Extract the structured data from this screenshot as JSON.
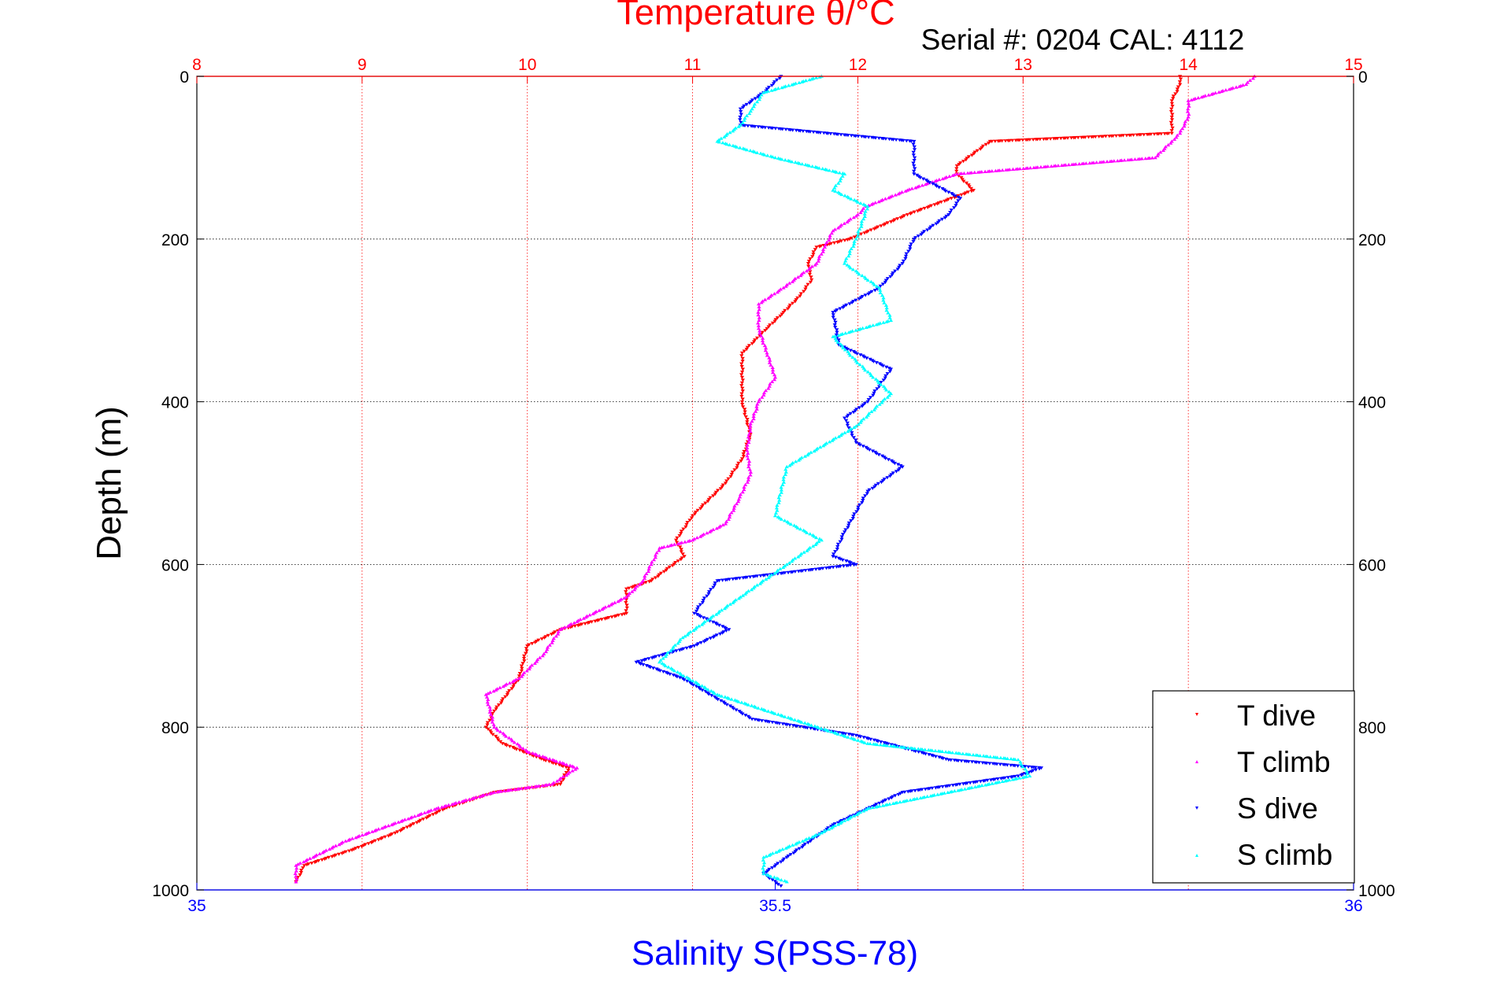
{
  "chart_data": {
    "type": "scatter",
    "title": "Temperature θ/°C",
    "subtitle": "Serial #: 0204  CAL: 4112",
    "ylabel": "Depth (m)",
    "xlabel_bottom": "Salinity S(PSS-78)",
    "y_axis": {
      "range": [
        0,
        1000
      ],
      "reversed": true,
      "ticks": [
        0,
        200,
        400,
        600,
        800,
        1000
      ],
      "tick_labels": [
        "0",
        "200",
        "400",
        "600",
        "800",
        "1000"
      ]
    },
    "x_top": {
      "label": "Temperature θ/°C",
      "range": [
        8,
        15
      ],
      "ticks": [
        8,
        9,
        10,
        11,
        12,
        13,
        14,
        15
      ],
      "tick_labels": [
        "8",
        "9",
        "10",
        "11",
        "12",
        "13",
        "14",
        "15"
      ],
      "grid": true
    },
    "x_bottom": {
      "label": "Salinity S(PSS-78)",
      "range": [
        35,
        36
      ],
      "ticks": [
        35,
        35.5,
        36
      ],
      "tick_labels": [
        "35",
        "35.5",
        "36"
      ]
    },
    "legend_position": "bottom-right",
    "colors": {
      "top_axis": "#ff0000",
      "bottom_axis": "#0000ff",
      "y_grid": "#000000"
    },
    "series": [
      {
        "name": "T dive",
        "axis": "top",
        "marker": "triangle-down",
        "color": "#ff0000",
        "x": [
          13.95,
          13.95,
          13.9,
          13.9,
          13.9,
          12.8,
          12.6,
          12.6,
          12.7,
          12.3,
          11.95,
          11.75,
          11.7,
          11.72,
          11.65,
          11.55,
          11.45,
          11.3,
          11.3,
          11.3,
          11.35,
          11.3,
          11.2,
          11.0,
          10.9,
          10.95,
          10.75,
          10.6,
          10.6,
          10.2,
          10.0,
          9.95,
          9.8,
          9.75,
          9.85,
          10.1,
          10.25,
          10.2,
          9.8,
          9.5,
          9.2,
          8.95,
          8.65,
          8.6
        ],
        "y": [
          0,
          10,
          30,
          50,
          70,
          80,
          110,
          120,
          140,
          170,
          200,
          210,
          230,
          250,
          270,
          290,
          310,
          340,
          370,
          400,
          440,
          470,
          500,
          540,
          570,
          590,
          620,
          630,
          660,
          680,
          700,
          740,
          780,
          800,
          820,
          840,
          850,
          870,
          880,
          900,
          930,
          950,
          970,
          990
        ]
      },
      {
        "name": "T climb",
        "axis": "top",
        "marker": "triangle-up",
        "color": "#ff00ff",
        "x": [
          14.4,
          14.35,
          14.0,
          14.0,
          13.95,
          13.9,
          13.8,
          12.6,
          12.3,
          12.05,
          12.0,
          11.85,
          11.8,
          11.75,
          11.55,
          11.4,
          11.4,
          11.45,
          11.5,
          11.4,
          11.35,
          11.33,
          11.35,
          11.28,
          11.2,
          11.0,
          10.8,
          10.75,
          10.7,
          10.6,
          10.2,
          10.1,
          9.95,
          9.75,
          9.8,
          10.0,
          10.3,
          10.15,
          9.8,
          9.45,
          8.9,
          8.6,
          8.6
        ],
        "y": [
          0,
          10,
          30,
          50,
          70,
          80,
          100,
          120,
          140,
          160,
          170,
          190,
          210,
          230,
          260,
          280,
          310,
          340,
          370,
          400,
          430,
          460,
          490,
          520,
          550,
          570,
          580,
          600,
          620,
          640,
          680,
          710,
          740,
          760,
          800,
          830,
          850,
          870,
          880,
          900,
          940,
          970,
          990
        ]
      },
      {
        "name": "S dive",
        "axis": "bottom",
        "marker": "triangle-down",
        "color": "#0000ff",
        "x": [
          35.505,
          35.49,
          35.47,
          35.47,
          35.62,
          35.62,
          35.66,
          35.65,
          35.62,
          35.61,
          35.59,
          35.55,
          35.555,
          35.6,
          35.58,
          35.56,
          35.57,
          35.61,
          35.58,
          35.56,
          35.55,
          35.57,
          35.45,
          35.43,
          35.46,
          35.43,
          35.38,
          35.42,
          35.48,
          35.57,
          35.65,
          35.73,
          35.71,
          35.61,
          35.55,
          35.51,
          35.49,
          35.505
        ],
        "y": [
          0,
          20,
          40,
          60,
          80,
          120,
          150,
          170,
          200,
          230,
          260,
          290,
          330,
          360,
          400,
          420,
          450,
          480,
          510,
          560,
          590,
          600,
          620,
          660,
          680,
          700,
          720,
          740,
          790,
          810,
          840,
          850,
          860,
          880,
          920,
          960,
          980,
          995
        ]
      },
      {
        "name": "S climb",
        "axis": "bottom",
        "marker": "triangle-up",
        "color": "#00ffff",
        "x": [
          35.54,
          35.49,
          35.48,
          35.47,
          35.45,
          35.5,
          35.56,
          35.55,
          35.58,
          35.57,
          35.56,
          35.59,
          35.6,
          35.55,
          35.57,
          35.6,
          35.57,
          35.51,
          35.5,
          35.54,
          35.51,
          35.47,
          35.42,
          35.4,
          35.45,
          35.58,
          35.71,
          35.72,
          35.58,
          35.54,
          35.49,
          35.49,
          35.51
        ],
        "y": [
          0,
          20,
          40,
          60,
          80,
          100,
          120,
          140,
          160,
          200,
          230,
          260,
          300,
          320,
          350,
          390,
          430,
          480,
          540,
          570,
          600,
          640,
          690,
          720,
          760,
          820,
          840,
          860,
          900,
          930,
          960,
          980,
          990
        ]
      }
    ]
  }
}
